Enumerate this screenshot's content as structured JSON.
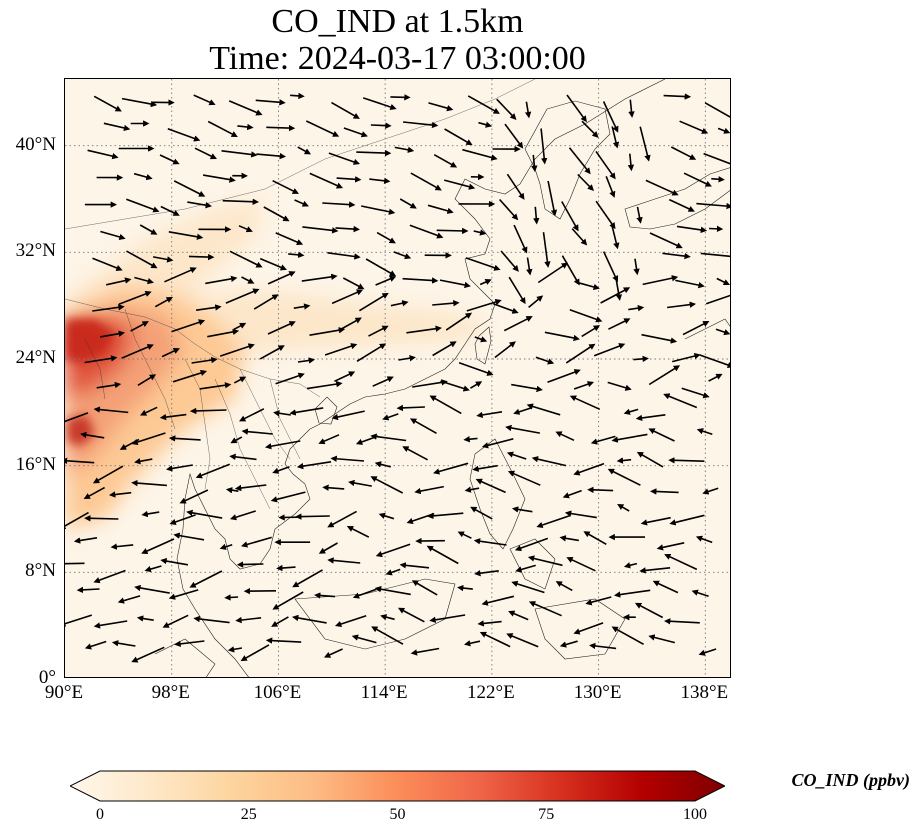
{
  "title_line1": "CO_IND at 1.5km",
  "title_line2": "Time: 2024-03-17 03:00:00",
  "map": {
    "extent": {
      "lon_min": 90,
      "lon_max": 140,
      "lat_min": 0,
      "lat_max": 45
    },
    "lat_ticks": [
      {
        "value": 0,
        "label": "0°"
      },
      {
        "value": 8,
        "label": "8°N"
      },
      {
        "value": 16,
        "label": "16°N"
      },
      {
        "value": 24,
        "label": "24°N"
      },
      {
        "value": 32,
        "label": "32°N"
      },
      {
        "value": 40,
        "label": "40°N"
      }
    ],
    "lon_ticks": [
      {
        "value": 90,
        "label": "90°E"
      },
      {
        "value": 98,
        "label": "98°E"
      },
      {
        "value": 106,
        "label": "106°E"
      },
      {
        "value": 114,
        "label": "114°E"
      },
      {
        "value": 122,
        "label": "122°E"
      },
      {
        "value": 130,
        "label": "130°E"
      },
      {
        "value": 138,
        "label": "138°E"
      }
    ],
    "gridlines": "dotted",
    "vectors": "wind"
  },
  "colorbar": {
    "label": "CO_IND (ppbv)",
    "min": 0,
    "max": 100,
    "colormap": "OrRd",
    "extend": "both",
    "ticks": [
      {
        "value": 0,
        "label": "0"
      },
      {
        "value": 25,
        "label": "25"
      },
      {
        "value": 50,
        "label": "50"
      },
      {
        "value": 75,
        "label": "75"
      },
      {
        "value": 100,
        "label": "100"
      }
    ],
    "colors": [
      "#fff7ec",
      "#fee8c8",
      "#fdd49e",
      "#fdbb84",
      "#fc8d59",
      "#ef6548",
      "#d7301f",
      "#b30000",
      "#7f0000"
    ]
  }
}
